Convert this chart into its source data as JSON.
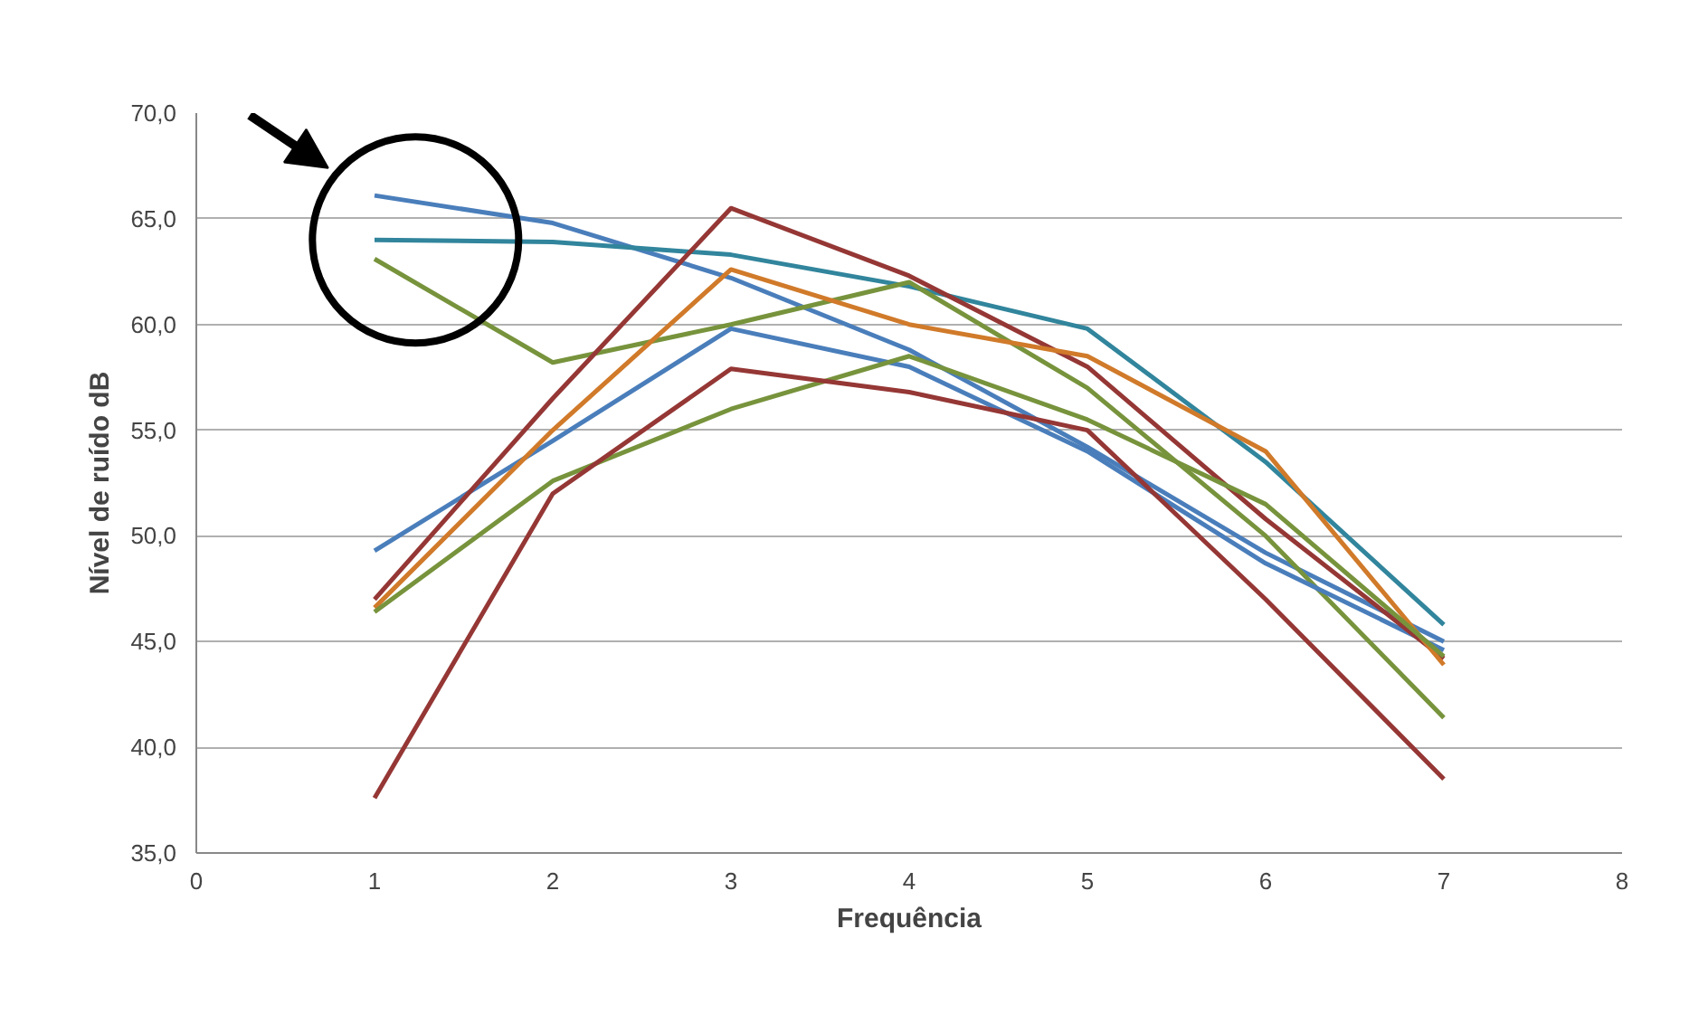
{
  "chart_data": {
    "type": "line",
    "xlabel": "Frequência",
    "ylabel": "Nível de ruído dB",
    "x": [
      1,
      2,
      3,
      4,
      5,
      6,
      7
    ],
    "series": [
      {
        "color": "#4a7ebb",
        "values": [
          66.1,
          64.8,
          62.2,
          58.8,
          54.2,
          49.2,
          45.0
        ]
      },
      {
        "color": "#31859c",
        "values": [
          64.0,
          63.9,
          63.3,
          61.8,
          59.8,
          53.5,
          45.8
        ]
      },
      {
        "color": "#77933c",
        "values": [
          63.1,
          58.2,
          60.0,
          62.0,
          57.0,
          50.0,
          41.4
        ]
      },
      {
        "color": "#4a7ebb",
        "values": [
          49.3,
          54.5,
          59.8,
          58.0,
          54.0,
          48.7,
          44.6
        ]
      },
      {
        "color": "#953735",
        "values": [
          47.0,
          56.5,
          65.5,
          62.3,
          58.0,
          50.8,
          44.2
        ]
      },
      {
        "color": "#d07a2a",
        "values": [
          46.6,
          55.0,
          62.6,
          60.0,
          58.5,
          54.0,
          43.9
        ]
      },
      {
        "color": "#77933c",
        "values": [
          46.4,
          52.6,
          56.0,
          58.5,
          55.5,
          51.5,
          44.3
        ]
      },
      {
        "color": "#953735",
        "values": [
          37.6,
          52.0,
          57.9,
          56.8,
          55.0,
          47.0,
          38.5
        ]
      }
    ],
    "xlim": [
      0,
      8
    ],
    "xticks": [
      0,
      1,
      2,
      3,
      4,
      5,
      6,
      7,
      8
    ],
    "ylim": [
      35,
      70
    ],
    "yticks": [
      {
        "value": 35,
        "label": "35,0"
      },
      {
        "value": 40,
        "label": "40,0"
      },
      {
        "value": 45,
        "label": "45,0"
      },
      {
        "value": 50,
        "label": "50,0"
      },
      {
        "value": 55,
        "label": "55,0"
      },
      {
        "value": 60,
        "label": "60,0"
      },
      {
        "value": 65,
        "label": "65,0"
      },
      {
        "value": 70,
        "label": "70,0"
      }
    ],
    "grid": "y",
    "marker": "none",
    "line_style": "solid"
  }
}
